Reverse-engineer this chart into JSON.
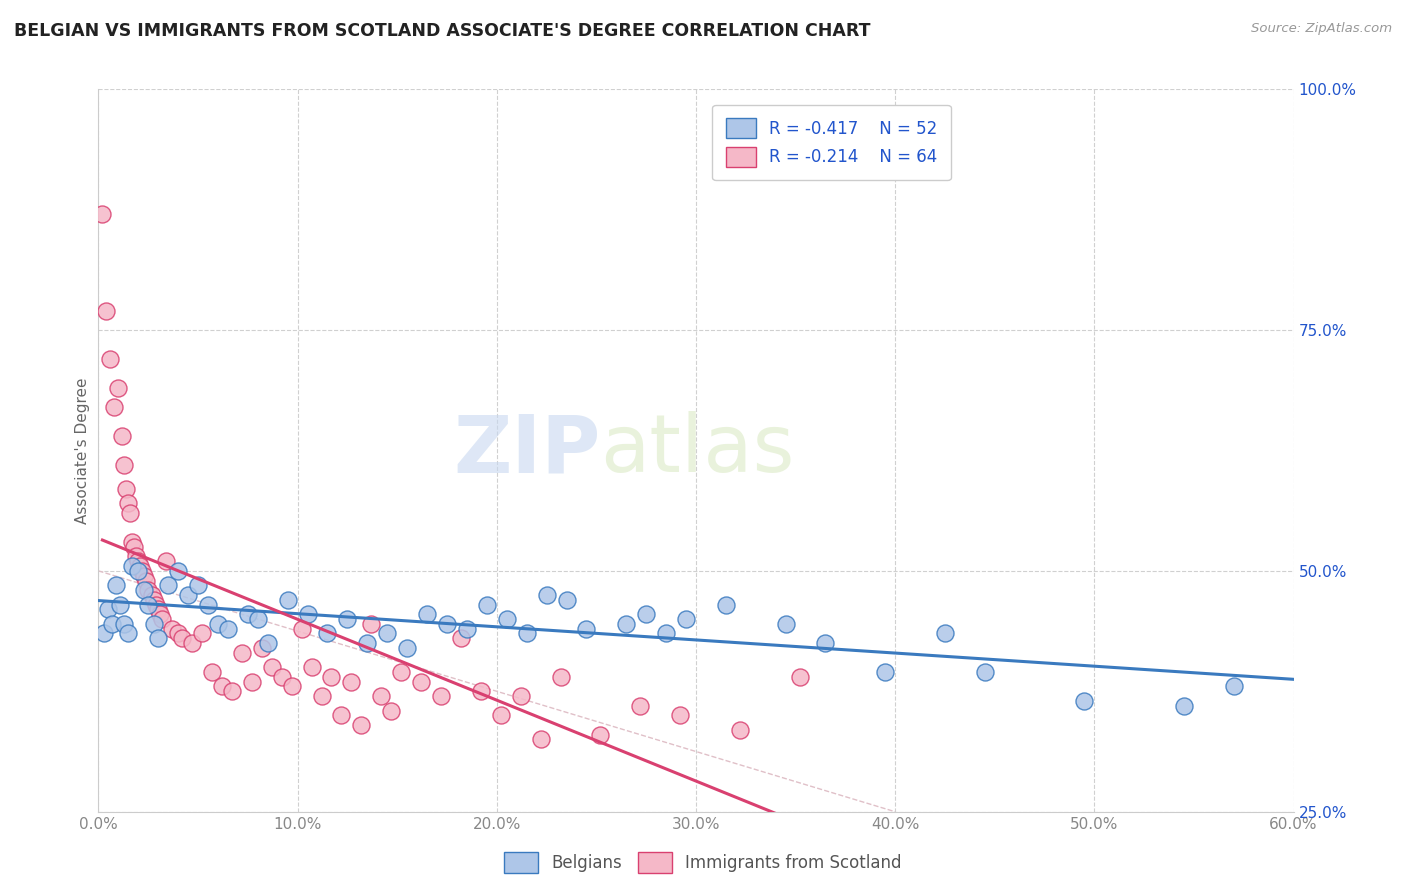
{
  "title": "BELGIAN VS IMMIGRANTS FROM SCOTLAND ASSOCIATE'S DEGREE CORRELATION CHART",
  "source_text": "Source: ZipAtlas.com",
  "ylabel_label": "Associate's Degree",
  "legend_labels": [
    "Belgians",
    "Immigrants from Scotland"
  ],
  "legend_r": [
    -0.417,
    -0.214
  ],
  "legend_n": [
    52,
    64
  ],
  "blue_color": "#aec6e8",
  "pink_color": "#f5b8c8",
  "blue_line_color": "#3a7abf",
  "pink_line_color": "#d94070",
  "text_color": "#2255cc",
  "watermark_zip": "ZIP",
  "watermark_atlas": "atlas",
  "blue_dots": [
    [
      0.3,
      43.5
    ],
    [
      0.5,
      46.0
    ],
    [
      0.7,
      44.5
    ],
    [
      0.9,
      48.5
    ],
    [
      1.1,
      46.5
    ],
    [
      1.3,
      44.5
    ],
    [
      1.5,
      43.5
    ],
    [
      1.7,
      50.5
    ],
    [
      2.0,
      50.0
    ],
    [
      2.3,
      48.0
    ],
    [
      2.5,
      46.5
    ],
    [
      2.8,
      44.5
    ],
    [
      3.0,
      43.0
    ],
    [
      3.5,
      48.5
    ],
    [
      4.0,
      50.0
    ],
    [
      4.5,
      47.5
    ],
    [
      5.0,
      48.5
    ],
    [
      5.5,
      46.5
    ],
    [
      6.0,
      44.5
    ],
    [
      6.5,
      44.0
    ],
    [
      7.5,
      45.5
    ],
    [
      8.0,
      45.0
    ],
    [
      8.5,
      42.5
    ],
    [
      9.5,
      47.0
    ],
    [
      10.5,
      45.5
    ],
    [
      11.5,
      43.5
    ],
    [
      12.5,
      45.0
    ],
    [
      13.5,
      42.5
    ],
    [
      14.5,
      43.5
    ],
    [
      15.5,
      42.0
    ],
    [
      16.5,
      45.5
    ],
    [
      17.5,
      44.5
    ],
    [
      18.5,
      44.0
    ],
    [
      19.5,
      46.5
    ],
    [
      20.5,
      45.0
    ],
    [
      21.5,
      43.5
    ],
    [
      22.5,
      47.5
    ],
    [
      23.5,
      47.0
    ],
    [
      24.5,
      44.0
    ],
    [
      26.5,
      44.5
    ],
    [
      27.5,
      45.5
    ],
    [
      28.5,
      43.5
    ],
    [
      29.5,
      45.0
    ],
    [
      31.5,
      46.5
    ],
    [
      34.5,
      44.5
    ],
    [
      36.5,
      42.5
    ],
    [
      39.5,
      39.5
    ],
    [
      42.5,
      43.5
    ],
    [
      44.5,
      39.5
    ],
    [
      49.5,
      36.5
    ],
    [
      54.5,
      36.0
    ],
    [
      57.0,
      38.0
    ]
  ],
  "pink_dots": [
    [
      0.2,
      87.0
    ],
    [
      0.4,
      77.0
    ],
    [
      0.6,
      72.0
    ],
    [
      0.8,
      67.0
    ],
    [
      1.0,
      69.0
    ],
    [
      1.2,
      64.0
    ],
    [
      1.3,
      61.0
    ],
    [
      1.4,
      58.5
    ],
    [
      1.5,
      57.0
    ],
    [
      1.6,
      56.0
    ],
    [
      1.7,
      53.0
    ],
    [
      1.8,
      52.5
    ],
    [
      1.9,
      51.5
    ],
    [
      2.0,
      51.0
    ],
    [
      2.1,
      50.5
    ],
    [
      2.2,
      50.0
    ],
    [
      2.3,
      49.5
    ],
    [
      2.4,
      49.0
    ],
    [
      2.5,
      48.0
    ],
    [
      2.7,
      47.5
    ],
    [
      2.8,
      47.0
    ],
    [
      2.9,
      46.5
    ],
    [
      3.0,
      46.0
    ],
    [
      3.1,
      45.5
    ],
    [
      3.2,
      45.0
    ],
    [
      3.4,
      51.0
    ],
    [
      3.7,
      44.0
    ],
    [
      4.0,
      43.5
    ],
    [
      4.2,
      43.0
    ],
    [
      4.7,
      42.5
    ],
    [
      5.2,
      43.5
    ],
    [
      5.7,
      39.5
    ],
    [
      6.2,
      38.0
    ],
    [
      6.7,
      37.5
    ],
    [
      7.2,
      41.5
    ],
    [
      7.7,
      38.5
    ],
    [
      8.2,
      42.0
    ],
    [
      8.7,
      40.0
    ],
    [
      9.2,
      39.0
    ],
    [
      9.7,
      38.0
    ],
    [
      10.2,
      44.0
    ],
    [
      10.7,
      40.0
    ],
    [
      11.2,
      37.0
    ],
    [
      11.7,
      39.0
    ],
    [
      12.2,
      35.0
    ],
    [
      12.7,
      38.5
    ],
    [
      13.2,
      34.0
    ],
    [
      13.7,
      44.5
    ],
    [
      14.2,
      37.0
    ],
    [
      14.7,
      35.5
    ],
    [
      15.2,
      39.5
    ],
    [
      16.2,
      38.5
    ],
    [
      17.2,
      37.0
    ],
    [
      18.2,
      43.0
    ],
    [
      19.2,
      37.5
    ],
    [
      20.2,
      35.0
    ],
    [
      21.2,
      37.0
    ],
    [
      22.2,
      32.5
    ],
    [
      23.2,
      39.0
    ],
    [
      25.2,
      33.0
    ],
    [
      27.2,
      36.0
    ],
    [
      29.2,
      35.0
    ],
    [
      32.2,
      33.5
    ],
    [
      35.2,
      39.0
    ]
  ],
  "xlim": [
    0.0,
    60.0
  ],
  "ylim": [
    25.0,
    100.0
  ],
  "xticks": [
    0.0,
    10.0,
    20.0,
    30.0,
    40.0,
    50.0,
    60.0
  ],
  "yticks": [
    25.0,
    50.0,
    75.0,
    100.0
  ],
  "figsize": [
    14.06,
    8.92
  ],
  "dpi": 100,
  "ref_line_start_x": 0.0,
  "ref_line_start_y": 50.0,
  "ref_line_end_x": 40.0,
  "ref_line_end_y": 25.0
}
